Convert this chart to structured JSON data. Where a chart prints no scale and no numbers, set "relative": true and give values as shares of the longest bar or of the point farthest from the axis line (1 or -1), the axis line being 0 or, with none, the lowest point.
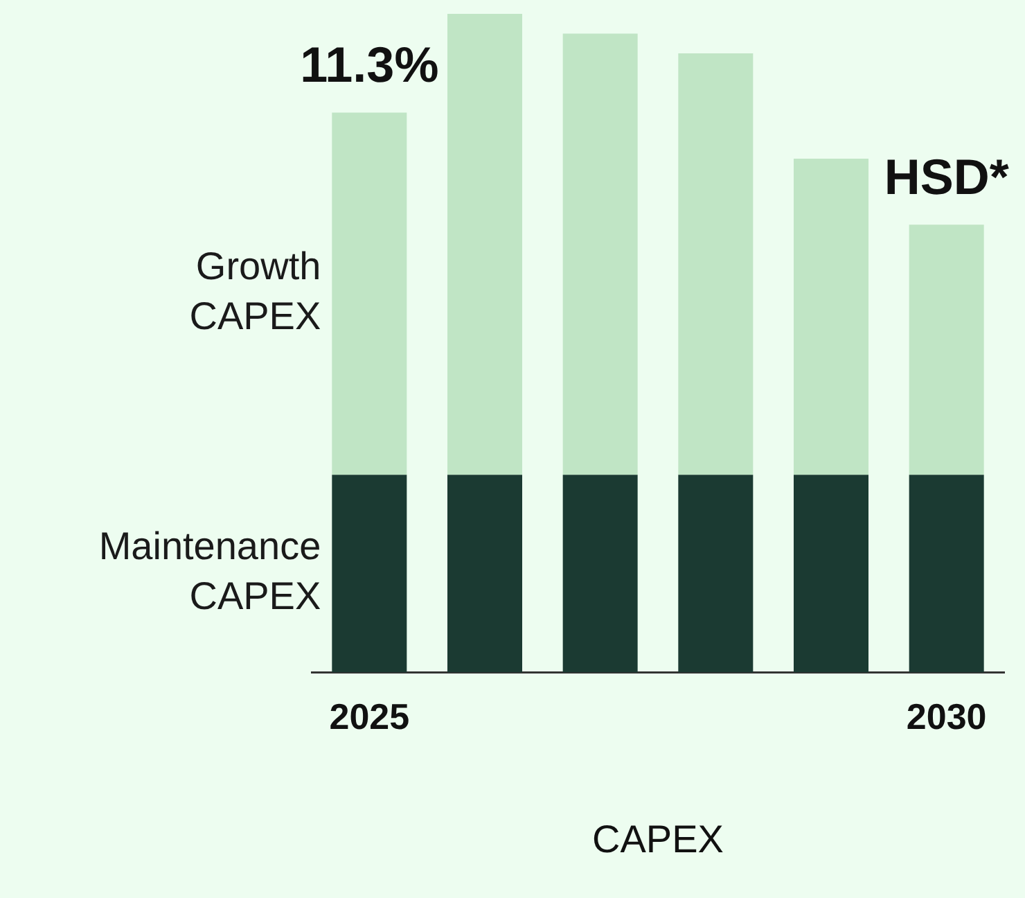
{
  "chart_data": {
    "type": "bar",
    "stacked": true,
    "relative": true,
    "xlabel": "CAPEX",
    "categories": [
      "2025",
      null,
      null,
      null,
      null,
      "2030"
    ],
    "series": [
      {
        "name": "Maintenance CAPEX",
        "color": "#1b3a32",
        "values": [
          0.3,
          0.3,
          0.3,
          0.3,
          0.3,
          0.3
        ]
      },
      {
        "name": "Growth CAPEX",
        "color": "#c0e5c5",
        "values": [
          0.55,
          0.7,
          0.67,
          0.64,
          0.48,
          0.38
        ]
      }
    ],
    "annotations": [
      "11.3%",
      "HSD*"
    ]
  }
}
